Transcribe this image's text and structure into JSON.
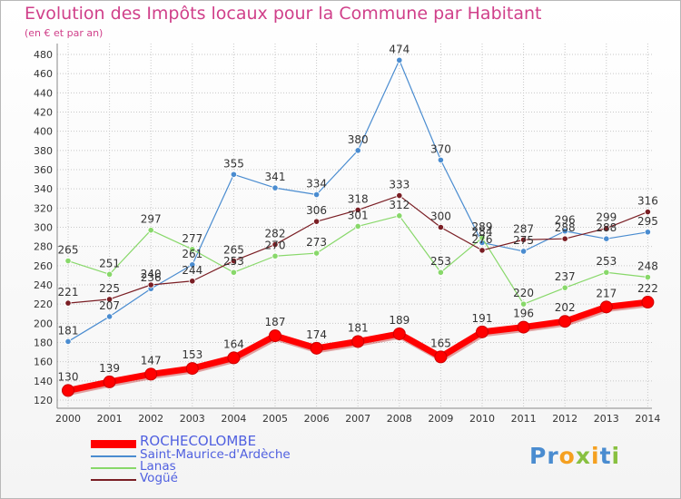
{
  "header": {
    "title": "Evolution des Impôts locaux pour la Commune par Habitant",
    "subtitle": "(en € et par an)"
  },
  "logo": {
    "text": "Proxiti"
  },
  "colors": {
    "title": "#d0408a",
    "grid": "#c8c8c8",
    "axis_text": "#333333"
  },
  "chart_data": {
    "type": "line",
    "title": "Evolution des Impôts locaux pour la Commune par Habitant",
    "subtitle": "(en € et par an)",
    "xlabel": "",
    "ylabel": "",
    "x": [
      "2000",
      "2001",
      "2002",
      "2003",
      "2004",
      "2005",
      "2006",
      "2007",
      "2008",
      "2009",
      "2010",
      "2011",
      "2012",
      "2013",
      "2014"
    ],
    "ylim": [
      120,
      480
    ],
    "yticks": [
      120,
      140,
      160,
      180,
      200,
      220,
      240,
      260,
      280,
      300,
      320,
      340,
      360,
      380,
      400,
      420,
      440,
      460,
      480
    ],
    "grid": true,
    "legend_position": "bottom-left",
    "series": [
      {
        "name": "ROCHECOLOMBE",
        "color": "#ff0000",
        "emphasis": true,
        "values": [
          130,
          139,
          147,
          153,
          164,
          187,
          174,
          181,
          189,
          165,
          191,
          196,
          202,
          217,
          222
        ]
      },
      {
        "name": "Saint-Maurice-d'Ardèche",
        "color": "#4a8cd0",
        "values": [
          181,
          207,
          236,
          261,
          355,
          341,
          334,
          380,
          474,
          370,
          284,
          275,
          296,
          288,
          295
        ]
      },
      {
        "name": "Lanas",
        "color": "#88d86a",
        "values": [
          265,
          251,
          297,
          277,
          253,
          270,
          273,
          301,
          312,
          253,
          289,
          220,
          237,
          253,
          248
        ]
      },
      {
        "name": "Vogüé",
        "color": "#7a1e24",
        "values": [
          221,
          225,
          240,
          244,
          265,
          282,
          306,
          318,
          333,
          300,
          276,
          287,
          288,
          299,
          316
        ]
      }
    ]
  }
}
